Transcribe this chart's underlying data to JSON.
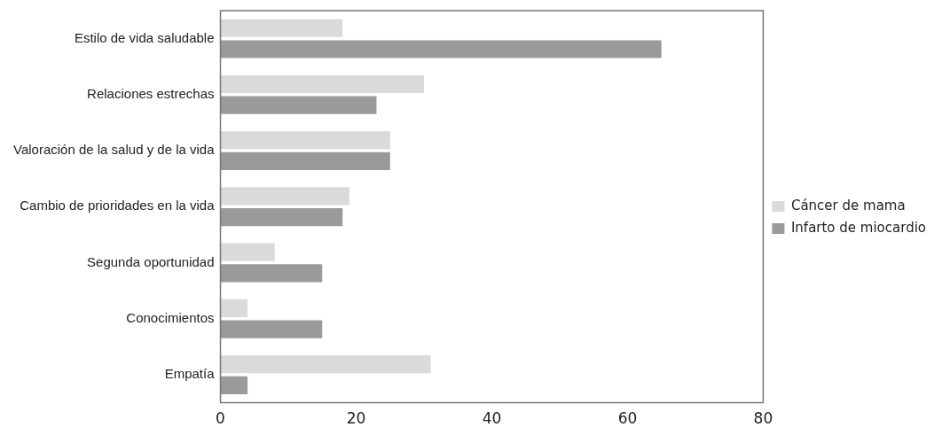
{
  "chart_data": {
    "type": "bar",
    "orientation": "horizontal",
    "categories": [
      "Estilo de vida saludable",
      "Relaciones estrechas",
      "Valoración de la salud y de la vida",
      "Cambio de prioridades en la vida",
      "Segunda oportunidad",
      "Conocimientos",
      "Empatía"
    ],
    "series": [
      {
        "name": "Cáncer de mama",
        "color": "#dadada",
        "values": [
          18,
          30,
          25,
          19,
          8,
          4,
          31
        ]
      },
      {
        "name": "Infarto de miocardio",
        "color": "#9a9a9a",
        "values": [
          65,
          23,
          25,
          18,
          15,
          15,
          4
        ]
      }
    ],
    "xlim": [
      0,
      80
    ],
    "xticks": [
      0,
      20,
      40,
      60,
      80
    ],
    "grid": false,
    "legend": "right"
  }
}
